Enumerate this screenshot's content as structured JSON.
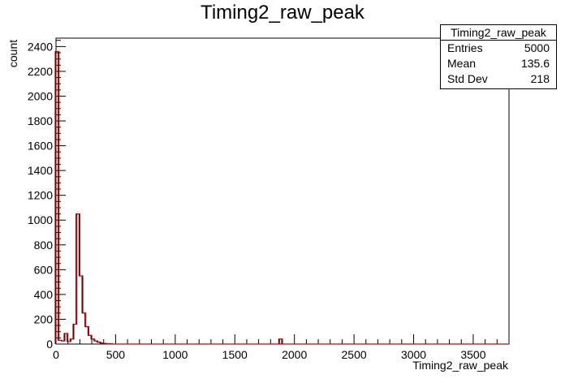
{
  "chart_data": {
    "type": "bar",
    "title": "Timing2_raw_peak",
    "xlabel": "Timing2_raw_peak",
    "ylabel": "count",
    "xlim": [
      0,
      3800
    ],
    "ylim": [
      0,
      2468
    ],
    "bin_width": 25,
    "x_ticks": [
      0,
      500,
      1000,
      1500,
      2000,
      2500,
      3000,
      3500
    ],
    "y_ticks": [
      0,
      200,
      400,
      600,
      800,
      1000,
      1200,
      1400,
      1600,
      1800,
      2000,
      2200,
      2400
    ],
    "bins": [
      {
        "x": 0,
        "count": 2360
      },
      {
        "x": 25,
        "count": 30
      },
      {
        "x": 50,
        "count": 25
      },
      {
        "x": 75,
        "count": 85
      },
      {
        "x": 100,
        "count": 20
      },
      {
        "x": 125,
        "count": 40
      },
      {
        "x": 150,
        "count": 160
      },
      {
        "x": 175,
        "count": 1050
      },
      {
        "x": 200,
        "count": 550
      },
      {
        "x": 225,
        "count": 250
      },
      {
        "x": 250,
        "count": 140
      },
      {
        "x": 275,
        "count": 70
      },
      {
        "x": 300,
        "count": 40
      },
      {
        "x": 325,
        "count": 25
      },
      {
        "x": 350,
        "count": 15
      },
      {
        "x": 375,
        "count": 8
      },
      {
        "x": 400,
        "count": 5
      },
      {
        "x": 425,
        "count": 3
      },
      {
        "x": 450,
        "count": 2
      },
      {
        "x": 1875,
        "count": 40
      }
    ],
    "line_color": "#cc0000",
    "stats": {
      "title": "Timing2_raw_peak",
      "rows": [
        {
          "label": "Entries",
          "value": "5000"
        },
        {
          "label": "Mean",
          "value": "135.6"
        },
        {
          "label": "Std Dev",
          "value": "218"
        }
      ]
    }
  }
}
